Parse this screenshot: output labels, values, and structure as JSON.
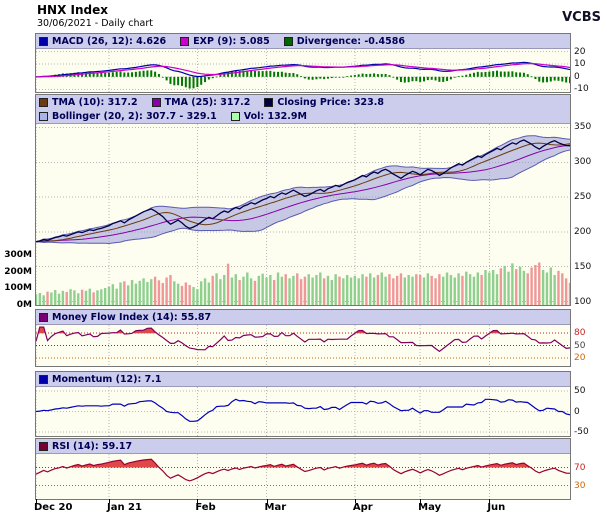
{
  "header": {
    "title": "HNX Index",
    "subtitle": "30/06/2021 - Daily chart",
    "brand": "VCBS"
  },
  "chart_data": {
    "type": "line",
    "title": "HNX Index",
    "x_range": [
      "Dec 2020",
      "Jun 2021"
    ],
    "x_tick_labels": [
      "Dec 20",
      "Jan 21",
      "Feb",
      "Mar",
      "Apr",
      "May",
      "Jun"
    ],
    "month_tick_indices": [
      0,
      19,
      42,
      60,
      83,
      100,
      118
    ],
    "current_values": {
      "macd": 4.626,
      "macd_signal": 5.085,
      "divergence": -0.4586,
      "tma10": 317.2,
      "tma25": 317.2,
      "close": 323.8,
      "bollinger_low": 307.7,
      "bollinger_high": 329.1,
      "volume": "132.9M",
      "mfi": 55.87,
      "momentum": 7.1,
      "rsi": 59.17
    },
    "indicator_params": {
      "macd": [
        26,
        12,
        9
      ],
      "tma": [
        10,
        25
      ],
      "bollinger": [
        20,
        2
      ],
      "mfi": 14,
      "momentum": 12,
      "rsi": 14
    },
    "series": {
      "close": [
        186,
        187,
        189,
        188,
        190,
        192,
        193,
        195,
        194,
        196,
        198,
        200,
        199,
        201,
        203,
        202,
        204,
        205,
        207,
        209,
        212,
        214,
        216,
        213,
        217,
        220,
        223,
        226,
        229,
        231,
        233,
        230,
        226,
        222,
        216,
        211,
        214,
        217,
        213,
        208,
        205,
        207,
        210,
        214,
        218,
        221,
        219,
        223,
        227,
        230,
        228,
        232,
        235,
        233,
        237,
        239,
        242,
        240,
        243,
        246,
        248,
        251,
        249,
        253,
        256,
        254,
        257,
        260,
        257,
        254,
        251,
        253,
        256,
        259,
        261,
        258,
        262,
        264,
        267,
        265,
        268,
        271,
        273,
        275,
        278,
        281,
        279,
        283,
        286,
        284,
        288,
        290,
        287,
        283,
        280,
        277,
        281,
        284,
        287,
        285,
        282,
        286,
        290,
        288,
        285,
        281,
        284,
        288,
        292,
        295,
        298,
        296,
        300,
        303,
        306,
        309,
        307,
        311,
        314,
        317,
        320,
        318,
        322,
        325,
        328,
        326,
        330,
        332,
        329,
        326,
        322,
        319,
        323,
        326,
        329,
        331,
        328,
        326,
        324,
        323.8
      ],
      "volume_m": [
        65,
        72,
        58,
        80,
        75,
        90,
        68,
        85,
        78,
        95,
        88,
        70,
        92,
        85,
        98,
        76,
        88,
        94,
        102,
        110,
        125,
        98,
        135,
        142,
        118,
        150,
        128,
        145,
        160,
        138,
        155,
        170,
        148,
        132,
        165,
        180,
        142,
        128,
        115,
        135,
        120,
        108,
        95,
        142,
        160,
        135,
        175,
        190,
        155,
        180,
        248,
        165,
        185,
        150,
        170,
        195,
        160,
        145,
        175,
        188,
        165,
        180,
        150,
        195,
        170,
        185,
        160,
        175,
        190,
        155,
        170,
        185,
        165,
        180,
        195,
        160,
        175,
        150,
        185,
        170,
        160,
        180,
        165,
        175,
        160,
        185,
        170,
        190,
        165,
        180,
        195,
        170,
        185,
        160,
        175,
        190,
        165,
        180,
        170,
        185,
        180,
        165,
        190,
        175,
        160,
        185,
        170,
        195,
        180,
        165,
        190,
        175,
        200,
        185,
        170,
        195,
        180,
        210,
        195,
        210,
        185,
        220,
        235,
        200,
        250,
        215,
        230,
        205,
        190,
        225,
        240,
        255,
        210,
        195,
        225,
        180,
        205,
        190,
        160,
        133
      ]
    },
    "panels": [
      {
        "id": "macd",
        "legend_rows": [
          [
            {
              "color": "#0000aa",
              "label": "MACD (26, 12): 4.626"
            },
            {
              "color": "#cc00cc",
              "label": "EXP (9): 5.085"
            },
            {
              "color": "#006600",
              "label": "Divergence: -0.4586"
            }
          ]
        ],
        "ylim": [
          -12,
          22
        ],
        "yticks": [
          {
            "v": 20
          },
          {
            "v": 10
          },
          {
            "v": 0
          },
          {
            "v": -10
          }
        ],
        "colors": {
          "macd": "#0000aa",
          "exp": "#cc00cc",
          "divergence": "#007700"
        }
      },
      {
        "id": "price",
        "legend_rows": [
          [
            {
              "color": "#6b3a10",
              "label": "TMA (10): 317.2"
            },
            {
              "color": "#8800aa",
              "label": "TMA (25): 317.2"
            },
            {
              "color": "#000044",
              "label": "Closing Price: 323.8"
            }
          ],
          [
            {
              "color": "#aab4e6",
              "label": "Bollinger (20, 2): 307.7 - 329.1"
            },
            {
              "color": "#aaffaa",
              "label": "Vol: 132.9M"
            }
          ]
        ],
        "ylim": [
          95,
          355
        ],
        "yticks": [
          {
            "v": 350
          },
          {
            "v": 300
          },
          {
            "v": 250
          },
          {
            "v": 200
          },
          {
            "v": 150
          },
          {
            "v": 100
          }
        ],
        "vol_ylim": [
          0,
          300
        ],
        "vol_yticks": [
          {
            "v": 300,
            "label": "300M"
          },
          {
            "v": 200,
            "label": "200M"
          },
          {
            "v": 100,
            "label": "100M"
          },
          {
            "v": 0,
            "label": "0M"
          }
        ],
        "colors": {
          "close": "#000044",
          "tma10": "#6b3a10",
          "tma25": "#8800aa",
          "bollinger_line": "#5a5ab0",
          "bollinger_fill": "rgba(145,150,215,0.5)",
          "vol_up": "#8fd08f",
          "vol_down": "#f09898"
        }
      },
      {
        "id": "mfi",
        "legend_rows": [
          [
            {
              "color": "#770077",
              "label": "Money Flow Index (14): 55.87"
            }
          ]
        ],
        "ylim": [
          0,
          100
        ],
        "yticks": [
          {
            "v": 80,
            "color": "#cc2222"
          },
          {
            "v": 50,
            "color": "#444444"
          },
          {
            "v": 20,
            "color": "#cc6600"
          }
        ],
        "overbought": 80,
        "colors": {
          "line": "#800060",
          "overbought_fill": "#e04848"
        }
      },
      {
        "id": "momentum",
        "legend_rows": [
          [
            {
              "color": "#0000aa",
              "label": "Momentum (12): 7.1"
            }
          ]
        ],
        "ylim": [
          -60,
          60
        ],
        "yticks": [
          {
            "v": 50
          },
          {
            "v": 0
          },
          {
            "v": -50
          }
        ],
        "colors": {
          "line": "#0000bb"
        }
      },
      {
        "id": "rsi",
        "legend_rows": [
          [
            {
              "color": "#770033",
              "label": "RSI (14): 59.17"
            }
          ]
        ],
        "ylim": [
          0,
          100
        ],
        "yticks": [
          {
            "v": 70,
            "color": "#cc2222"
          },
          {
            "v": 30,
            "color": "#cc6600"
          }
        ],
        "overbought": 70,
        "colors": {
          "line": "#990033",
          "overbought_fill": "#e04848"
        }
      }
    ]
  }
}
